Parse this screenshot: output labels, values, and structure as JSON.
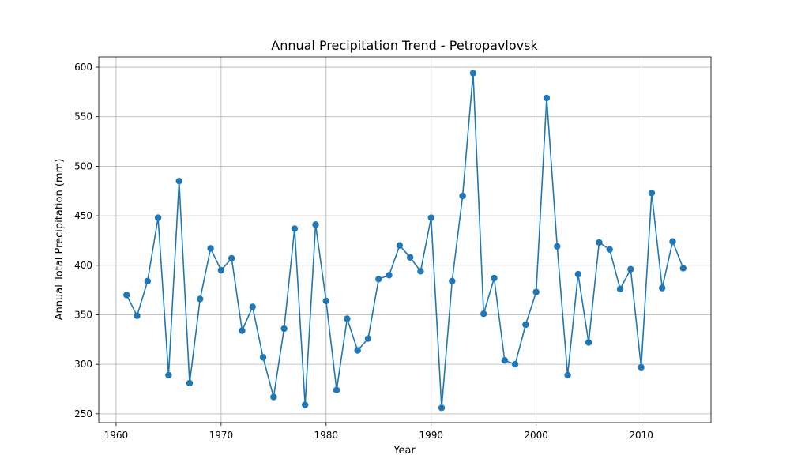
{
  "chart_data": {
    "type": "line",
    "title": "Annual Precipitation Trend - Petropavlovsk",
    "xlabel": "Year",
    "ylabel": "Annual Total Precipitation (mm)",
    "xlim": [
      1958.35,
      2016.65
    ],
    "ylim": [
      241.1,
      610.4
    ],
    "xticks": [
      1960,
      1970,
      1980,
      1990,
      2000,
      2010
    ],
    "yticks": [
      250,
      300,
      350,
      400,
      450,
      500,
      550,
      600
    ],
    "grid": true,
    "color": "#1f77b4",
    "markers": true,
    "x": [
      1961,
      1962,
      1963,
      1964,
      1965,
      1966,
      1967,
      1968,
      1969,
      1970,
      1971,
      1972,
      1973,
      1974,
      1975,
      1976,
      1977,
      1978,
      1979,
      1980,
      1981,
      1982,
      1983,
      1984,
      1985,
      1986,
      1987,
      1988,
      1989,
      1990,
      1991,
      1992,
      1993,
      1994,
      1995,
      1996,
      1997,
      1998,
      1999,
      2000,
      2001,
      2002,
      2003,
      2004,
      2005,
      2006,
      2007,
      2008,
      2009,
      2010,
      2011,
      2012,
      2013,
      2014
    ],
    "y": [
      370,
      349,
      384,
      448,
      289,
      485,
      281,
      366,
      417,
      395,
      407,
      334,
      358,
      307,
      267,
      336,
      437,
      259,
      441,
      364,
      274,
      346,
      314,
      326,
      386,
      390,
      420,
      408,
      394,
      448,
      256,
      384,
      470,
      594,
      351,
      387,
      304,
      300,
      340,
      373,
      569,
      419,
      289,
      391,
      322,
      423,
      416,
      376,
      396,
      297,
      473,
      377,
      424,
      397
    ]
  }
}
